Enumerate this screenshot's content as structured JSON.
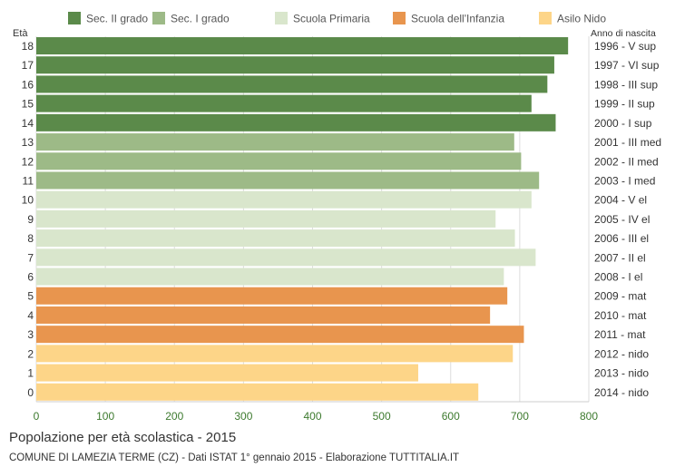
{
  "chart_data": {
    "type": "bar",
    "orientation": "horizontal",
    "title": "Popolazione per età scolastica - 2015",
    "subtitle": "COMUNE DI LAMEZIA TERME (CZ) - Dati ISTAT 1° gennaio 2015 - Elaborazione TUTTITALIA.IT",
    "ylabel_left": "Età",
    "ylabel_right": "Anno di nascita",
    "xlim": [
      0,
      800
    ],
    "xticks": [
      0,
      100,
      200,
      300,
      400,
      500,
      600,
      700,
      800
    ],
    "grid": true,
    "legend_position": "top",
    "legend": [
      {
        "label": "Sec. II grado",
        "color": "#5b8a4a"
      },
      {
        "label": "Sec. I grado",
        "color": "#9dba87"
      },
      {
        "label": "Scuola Primaria",
        "color": "#d9e6cc"
      },
      {
        "label": "Scuola dell'Infanzia",
        "color": "#e8954e"
      },
      {
        "label": "Asilo Nido",
        "color": "#fdd588"
      }
    ],
    "bars": [
      {
        "age": "18",
        "birth": "1996 - V sup",
        "value": 770,
        "group": 0
      },
      {
        "age": "17",
        "birth": "1997 - VI sup",
        "value": 750,
        "group": 0
      },
      {
        "age": "16",
        "birth": "1998 - III sup",
        "value": 740,
        "group": 0
      },
      {
        "age": "15",
        "birth": "1999 - II sup",
        "value": 717,
        "group": 0
      },
      {
        "age": "14",
        "birth": "2000 - I sup",
        "value": 752,
        "group": 0
      },
      {
        "age": "13",
        "birth": "2001 - III med",
        "value": 692,
        "group": 1
      },
      {
        "age": "12",
        "birth": "2002 - II med",
        "value": 702,
        "group": 1
      },
      {
        "age": "11",
        "birth": "2003 - I med",
        "value": 728,
        "group": 1
      },
      {
        "age": "10",
        "birth": "2004 - V el",
        "value": 717,
        "group": 2
      },
      {
        "age": "9",
        "birth": "2005 - IV el",
        "value": 665,
        "group": 2
      },
      {
        "age": "8",
        "birth": "2006 - III el",
        "value": 693,
        "group": 2
      },
      {
        "age": "7",
        "birth": "2007 - II el",
        "value": 723,
        "group": 2
      },
      {
        "age": "6",
        "birth": "2008 - I el",
        "value": 677,
        "group": 2
      },
      {
        "age": "5",
        "birth": "2009 - mat",
        "value": 682,
        "group": 3
      },
      {
        "age": "4",
        "birth": "2010 - mat",
        "value": 657,
        "group": 3
      },
      {
        "age": "3",
        "birth": "2011 - mat",
        "value": 706,
        "group": 3
      },
      {
        "age": "2",
        "birth": "2012 - nido",
        "value": 690,
        "group": 4
      },
      {
        "age": "1",
        "birth": "2013 - nido",
        "value": 553,
        "group": 4
      },
      {
        "age": "0",
        "birth": "2014 - nido",
        "value": 640,
        "group": 4
      }
    ]
  }
}
